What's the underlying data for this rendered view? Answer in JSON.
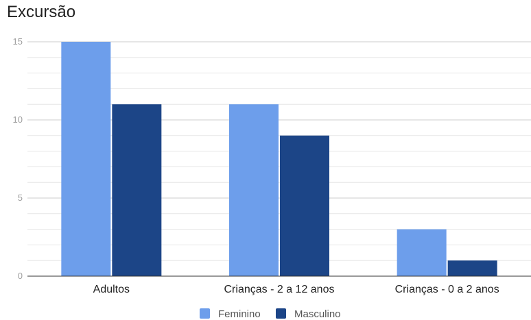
{
  "chart_data": {
    "type": "bar",
    "title": "Excursão",
    "xlabel": "",
    "ylabel": "",
    "categories": [
      "Adultos",
      "Crianças - 2 a 12 anos",
      "Crianças - 0 a 2 anos"
    ],
    "series": [
      {
        "name": "Feminino",
        "values": [
          15,
          11,
          3
        ],
        "color": "#6d9eeb"
      },
      {
        "name": "Masculino",
        "values": [
          11,
          9,
          1
        ],
        "color": "#1c4587"
      }
    ],
    "ylim": [
      0,
      15
    ],
    "yticks": [
      "0",
      "5",
      "10",
      "15"
    ],
    "grid": true,
    "legend_position": "bottom"
  }
}
